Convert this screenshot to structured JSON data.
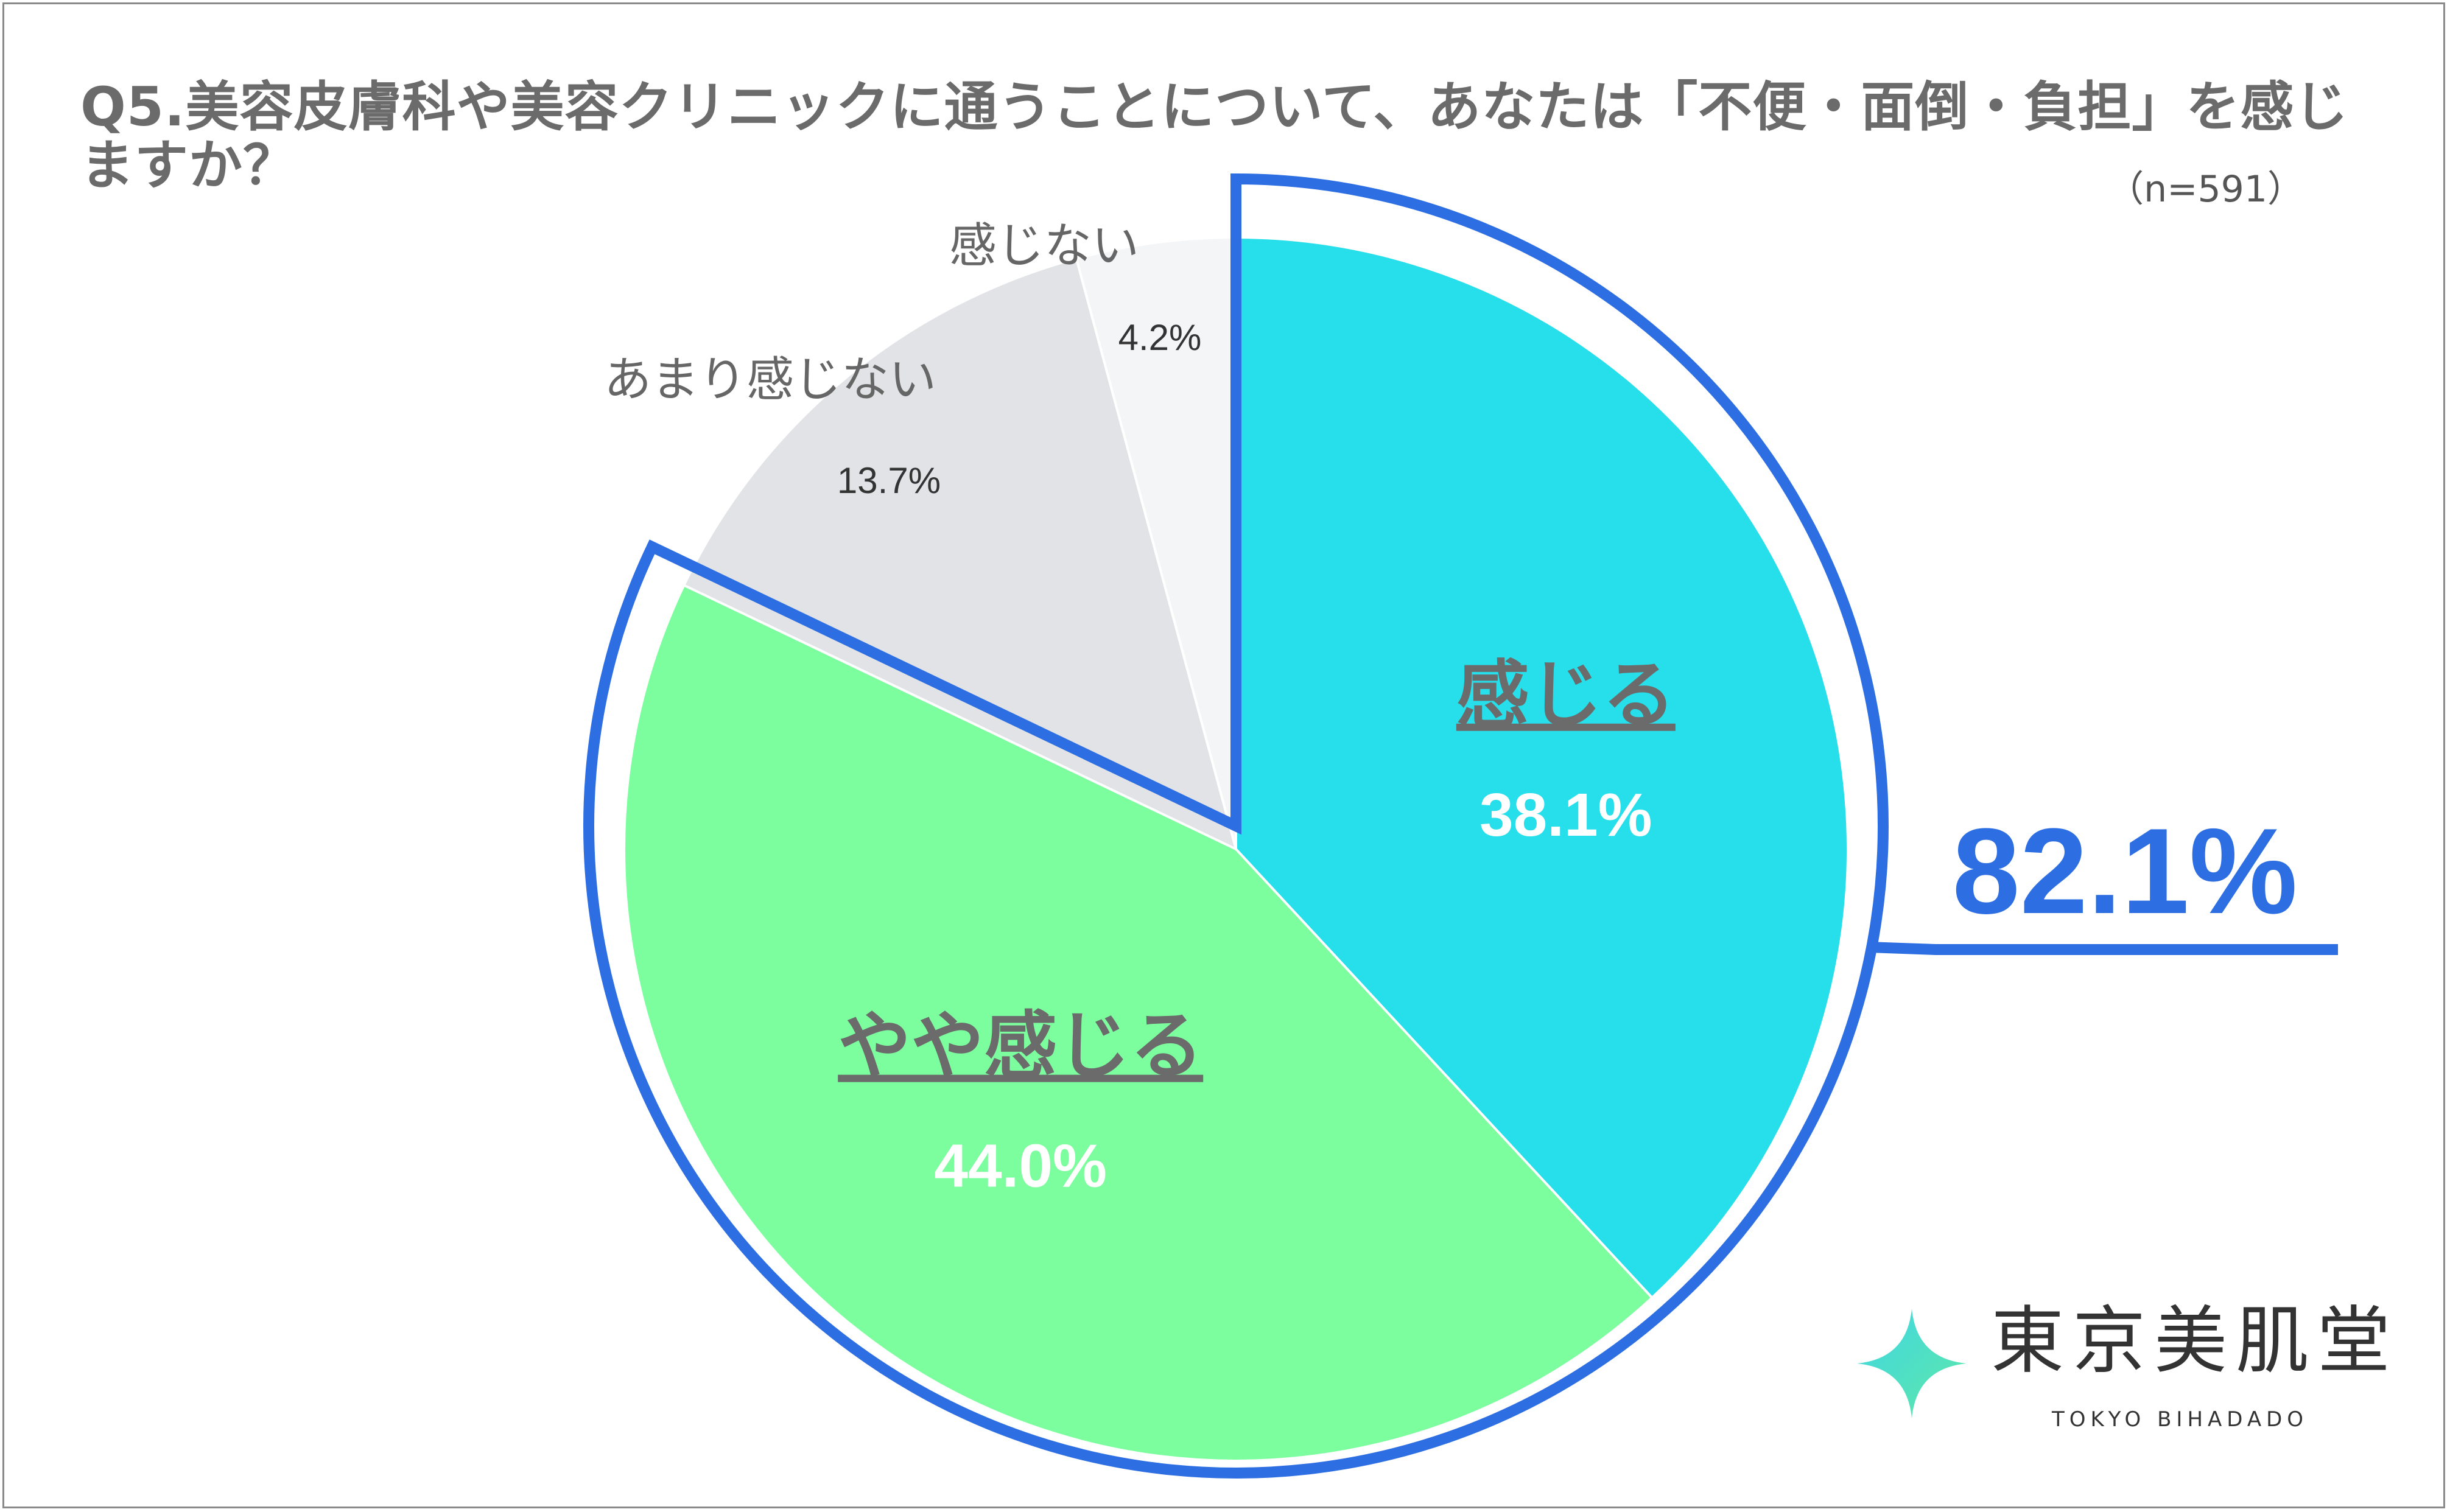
{
  "header": {
    "title": "Q5.美容皮膚科や美容クリニックに通うことについて、あなたは「不便・面倒・負担」を感じますか？",
    "sample_size": "（n=591）"
  },
  "chart_data": {
    "type": "pie",
    "title": "Q5.美容皮膚科や美容クリニックに通うことについて、あなたは「不便・面倒・負担」を感じますか？",
    "n": 591,
    "slices": [
      {
        "label": "感じる",
        "value": 38.1,
        "display": "38.1%",
        "color": "#27dfeb"
      },
      {
        "label": "やや感じる",
        "value": 44.0,
        "display": "44.0%",
        "color": "#7cfe9e"
      },
      {
        "label": "あまり感じない",
        "value": 13.7,
        "display": "13.7%",
        "color": "#e2e3e6"
      },
      {
        "label": "感じない",
        "value": 4.2,
        "display": "4.2%",
        "color": "#f4f5f7"
      }
    ],
    "highlight": {
      "slices": [
        "感じる",
        "やや感じる"
      ],
      "total": 82.1,
      "display": "82.1%",
      "color": "#2d6fe3"
    }
  },
  "logo": {
    "name": "東京美肌堂",
    "subtitle": "TOKYO BIHADADO"
  }
}
